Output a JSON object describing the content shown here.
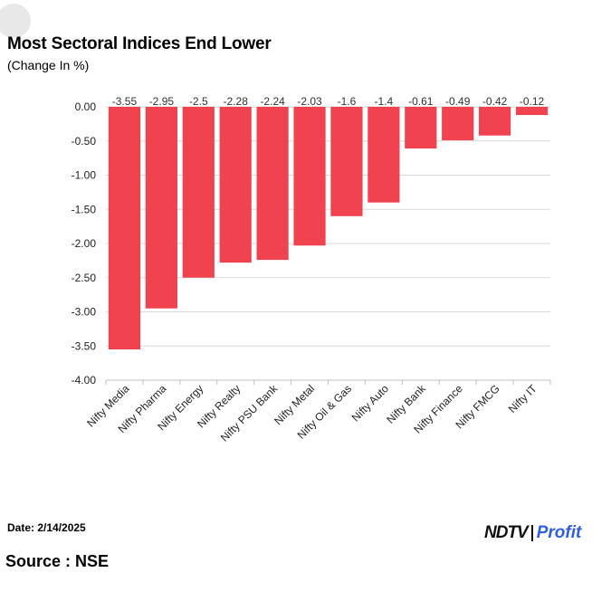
{
  "header": {
    "title": "Most Sectoral Indices End Lower",
    "subtitle": "(Change In %)"
  },
  "footer": {
    "date": "Date: 2/14/2025",
    "source": "Source : NSE"
  },
  "logo": {
    "brand": "NDTV",
    "product": "Profit",
    "product_color": "#2f5fe0"
  },
  "colors": {
    "bar": "#f0434f",
    "grid": "#d9d9d9"
  },
  "chart_data": {
    "type": "bar",
    "categories": [
      "Nifty Media",
      "Nifty Pharma",
      "Nifty Energy",
      "Nifty Realty",
      "Nifty PSU Bank",
      "Nifty Metal",
      "Nifty Oil & Gas",
      "Nifty Auto",
      "Nifty Bank",
      "Nifty Finance",
      "Nifty FMCG",
      "Nifty IT"
    ],
    "values": [
      -3.55,
      -2.95,
      -2.5,
      -2.28,
      -2.24,
      -2.03,
      -1.6,
      -1.4,
      -0.61,
      -0.49,
      -0.42,
      -0.12
    ],
    "data_labels": [
      "-3.55",
      "-2.95",
      "-2.5",
      "-2.28",
      "-2.24",
      "-2.03",
      "-1.6",
      "-1.4",
      "-0.61",
      "-0.49",
      "-0.42",
      "-0.12"
    ],
    "y_ticks": [
      "0.00",
      "-0.50",
      "-1.00",
      "-1.50",
      "-2.00",
      "-2.50",
      "-3.00",
      "-3.50",
      "-4.00"
    ],
    "ylim": [
      -4,
      0
    ],
    "grid": true,
    "legend": "none"
  }
}
